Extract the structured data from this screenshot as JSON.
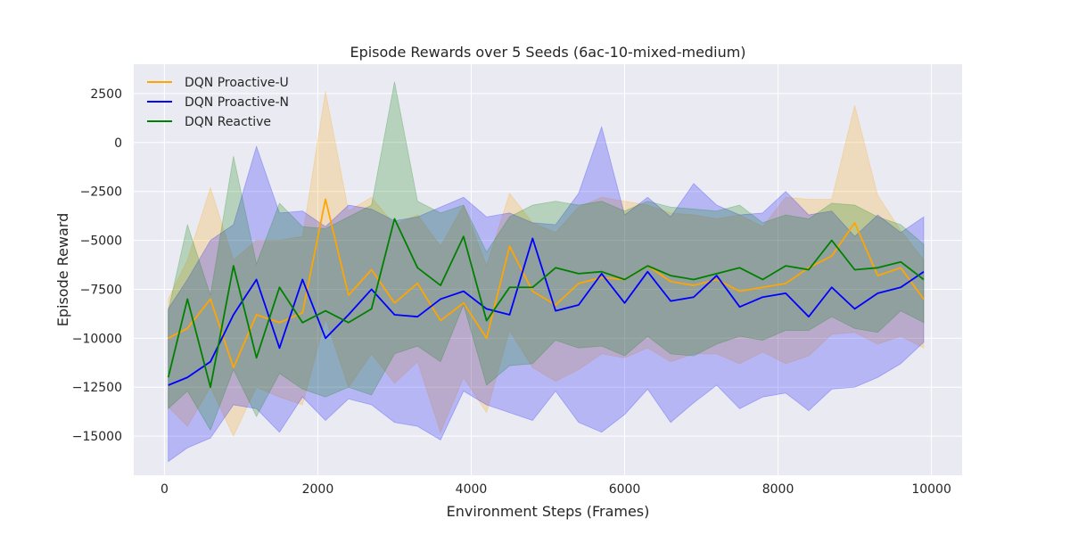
{
  "chart_data": {
    "type": "line",
    "title": "Episode Rewards over 5 Seeds (6ac-10-mixed-medium)",
    "xlabel": "Environment Steps (Frames)",
    "ylabel": "Episode Reward",
    "xlim": [
      -400,
      10400
    ],
    "ylim": [
      -17000,
      4000
    ],
    "xticks": [
      0,
      2000,
      4000,
      6000,
      8000,
      10000
    ],
    "xtick_labels": [
      "0",
      "2000",
      "4000",
      "6000",
      "8000",
      "10000"
    ],
    "yticks": [
      2500,
      0,
      -2500,
      -5000,
      -7500,
      -10000,
      -12500,
      -15000
    ],
    "ytick_labels": [
      "2500",
      "0",
      "−2500",
      "−5000",
      "−7500",
      "−10000",
      "−12500",
      "−15000"
    ],
    "grid": true,
    "legend_position": "top-left",
    "x": [
      50,
      300,
      600,
      900,
      1200,
      1500,
      1800,
      2100,
      2400,
      2700,
      3000,
      3300,
      3600,
      3900,
      4200,
      4500,
      4800,
      5100,
      5400,
      5700,
      6000,
      6300,
      6600,
      6900,
      7200,
      7500,
      7800,
      8100,
      8400,
      8700,
      9000,
      9300,
      9600,
      9900
    ],
    "series": [
      {
        "name": "DQN Proactive-U",
        "color": "#FFA500",
        "fill_alpha": 0.22,
        "mean": [
          -10000,
          -9500,
          -8000,
          -11500,
          -8800,
          -9200,
          -8700,
          -2900,
          -7800,
          -6500,
          -8200,
          -7200,
          -9100,
          -8200,
          -10000,
          -5300,
          -7600,
          -8300,
          -7200,
          -6900,
          -7000,
          -6300,
          -7100,
          -7300,
          -7000,
          -7600,
          -7400,
          -7200,
          -6400,
          -5800,
          -4100,
          -6800,
          -6400,
          -8000
        ],
        "upper": [
          -8000,
          -6000,
          -2300,
          -6000,
          -5000,
          -5000,
          -4800,
          2600,
          -3500,
          -2800,
          -4200,
          -3700,
          -5300,
          -3200,
          -6300,
          -2600,
          -4100,
          -4600,
          -3300,
          -2800,
          -3000,
          -3200,
          -3600,
          -3700,
          -3900,
          -3700,
          -4300,
          -2800,
          -2900,
          -2900,
          1900,
          -2700,
          -4500,
          -6000
        ],
        "lower": [
          -13500,
          -14500,
          -12500,
          -15000,
          -12500,
          -13000,
          -13400,
          -9000,
          -12500,
          -10800,
          -12300,
          -11200,
          -14800,
          -12000,
          -13800,
          -9600,
          -11500,
          -12200,
          -11600,
          -10800,
          -11000,
          -10500,
          -11200,
          -10800,
          -10800,
          -11300,
          -10700,
          -11300,
          -10900,
          -9800,
          -9700,
          -10300,
          -9900,
          -10500
        ]
      },
      {
        "name": "DQN Proactive-N",
        "color": "#0000FF",
        "fill_alpha": 0.22,
        "mean": [
          -12400,
          -12000,
          -11200,
          -8800,
          -7000,
          -10500,
          -7000,
          -10000,
          -8800,
          -7500,
          -8800,
          -8900,
          -8000,
          -7600,
          -8500,
          -8800,
          -4900,
          -8600,
          -8300,
          -6700,
          -8200,
          -6600,
          -8100,
          -7900,
          -6800,
          -8400,
          -7900,
          -7700,
          -8900,
          -7400,
          -8500,
          -7700,
          -7400,
          -6600
        ],
        "upper": [
          -8500,
          -7000,
          -5000,
          -4200,
          -200,
          -3600,
          -3500,
          -4300,
          -3200,
          -3400,
          -4000,
          -3800,
          -3300,
          -2800,
          -3800,
          -3600,
          -4100,
          -4200,
          -2600,
          800,
          -3700,
          -2800,
          -3800,
          -2100,
          -3200,
          -3700,
          -3600,
          -2500,
          -3700,
          -3500,
          -4800,
          -3700,
          -4600,
          -3800
        ],
        "lower": [
          -16300,
          -15600,
          -15100,
          -13400,
          -13600,
          -14800,
          -13000,
          -14200,
          -13100,
          -13400,
          -14300,
          -14500,
          -15200,
          -12700,
          -13400,
          -13800,
          -14200,
          -12700,
          -14300,
          -14800,
          -13900,
          -12600,
          -14300,
          -13300,
          -12400,
          -13600,
          -13000,
          -12800,
          -13700,
          -12600,
          -12500,
          -12000,
          -11300,
          -10200
        ]
      },
      {
        "name": "DQN Reactive",
        "color": "#008000",
        "fill_alpha": 0.22,
        "mean": [
          -12000,
          -8000,
          -12500,
          -6300,
          -11000,
          -7400,
          -9200,
          -8600,
          -9200,
          -8500,
          -3900,
          -6400,
          -7300,
          -4800,
          -9100,
          -7400,
          -7400,
          -6400,
          -6700,
          -6600,
          -7000,
          -6300,
          -6800,
          -7000,
          -6700,
          -6400,
          -7000,
          -6300,
          -6500,
          -5000,
          -6500,
          -6400,
          -6100,
          -7000
        ],
        "upper": [
          -8600,
          -4200,
          -7800,
          -700,
          -6200,
          -3100,
          -4300,
          -4400,
          -3800,
          -3200,
          3100,
          -3000,
          -3600,
          -3200,
          -5600,
          -3800,
          -3200,
          -3000,
          -3200,
          -3000,
          -3500,
          -3000,
          -3300,
          -3400,
          -3500,
          -3200,
          -4100,
          -3700,
          -3900,
          -3100,
          -3200,
          -3800,
          -4200,
          -5200
        ],
        "lower": [
          -13600,
          -12700,
          -14700,
          -11600,
          -14000,
          -11800,
          -12600,
          -13000,
          -12500,
          -12900,
          -10800,
          -10400,
          -11200,
          -8300,
          -12400,
          -11400,
          -11300,
          -10100,
          -10500,
          -10400,
          -10900,
          -9900,
          -10800,
          -10900,
          -10300,
          -9900,
          -10100,
          -9600,
          -9600,
          -8900,
          -9500,
          -9700,
          -8600,
          -9200
        ]
      }
    ]
  }
}
